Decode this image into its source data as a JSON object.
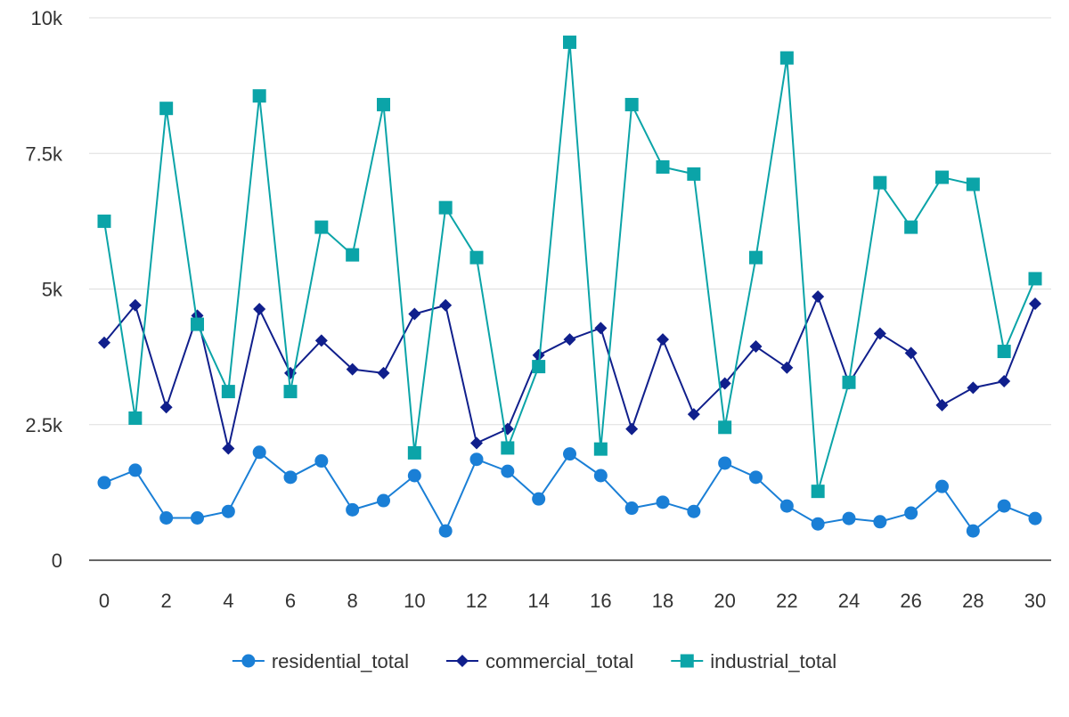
{
  "chart_data": {
    "type": "line",
    "title": "",
    "xlabel": "",
    "ylabel": "",
    "x": [
      0,
      1,
      2,
      3,
      4,
      5,
      6,
      7,
      8,
      9,
      10,
      11,
      12,
      13,
      14,
      15,
      16,
      17,
      18,
      19,
      20,
      21,
      22,
      23,
      24,
      25,
      26,
      27,
      28,
      29,
      30
    ],
    "xlim": [
      0,
      30
    ],
    "ylim": [
      0,
      10000
    ],
    "x_ticks": [
      {
        "value": 0,
        "label": "0"
      },
      {
        "value": 2,
        "label": "2"
      },
      {
        "value": 4,
        "label": "4"
      },
      {
        "value": 6,
        "label": "6"
      },
      {
        "value": 8,
        "label": "8"
      },
      {
        "value": 10,
        "label": "10"
      },
      {
        "value": 12,
        "label": "12"
      },
      {
        "value": 14,
        "label": "14"
      },
      {
        "value": 16,
        "label": "16"
      },
      {
        "value": 18,
        "label": "18"
      },
      {
        "value": 20,
        "label": "20"
      },
      {
        "value": 22,
        "label": "22"
      },
      {
        "value": 24,
        "label": "24"
      },
      {
        "value": 26,
        "label": "26"
      },
      {
        "value": 28,
        "label": "28"
      },
      {
        "value": 30,
        "label": "30"
      }
    ],
    "y_ticks": [
      {
        "value": 0,
        "label": "0"
      },
      {
        "value": 2500,
        "label": "2.5k"
      },
      {
        "value": 5000,
        "label": "5k"
      },
      {
        "value": 7500,
        "label": "7.5k"
      },
      {
        "value": 10000,
        "label": "10k"
      }
    ],
    "grid": true,
    "legend_position": "bottom",
    "series": [
      {
        "name": "residential_total",
        "color": "#1a7fd6",
        "marker": "circle",
        "values": [
          1430,
          1660,
          780,
          780,
          900,
          1990,
          1530,
          1830,
          930,
          1100,
          1560,
          540,
          1860,
          1640,
          1130,
          1960,
          1560,
          960,
          1070,
          900,
          1790,
          1530,
          1000,
          670,
          770,
          710,
          870,
          1360,
          540,
          1000,
          770
        ]
      },
      {
        "name": "commercial_total",
        "color": "#101f8c",
        "marker": "diamond",
        "values": [
          4010,
          4700,
          2820,
          4510,
          2060,
          4630,
          3450,
          4050,
          3520,
          3450,
          4540,
          4700,
          2160,
          2420,
          3780,
          4070,
          4280,
          2420,
          4070,
          2690,
          3260,
          3940,
          3550,
          4860,
          3260,
          4180,
          3820,
          2860,
          3180,
          3300,
          4730
        ]
      },
      {
        "name": "industrial_total",
        "color": "#0ba4a8",
        "marker": "square",
        "values": [
          6250,
          2620,
          8330,
          4350,
          3110,
          8560,
          3110,
          6140,
          5630,
          8400,
          1980,
          6500,
          5580,
          2070,
          3570,
          9550,
          2050,
          8400,
          7250,
          7120,
          2450,
          5580,
          9260,
          1270,
          3280,
          6960,
          6140,
          7060,
          6930,
          3850,
          5190
        ]
      }
    ]
  }
}
